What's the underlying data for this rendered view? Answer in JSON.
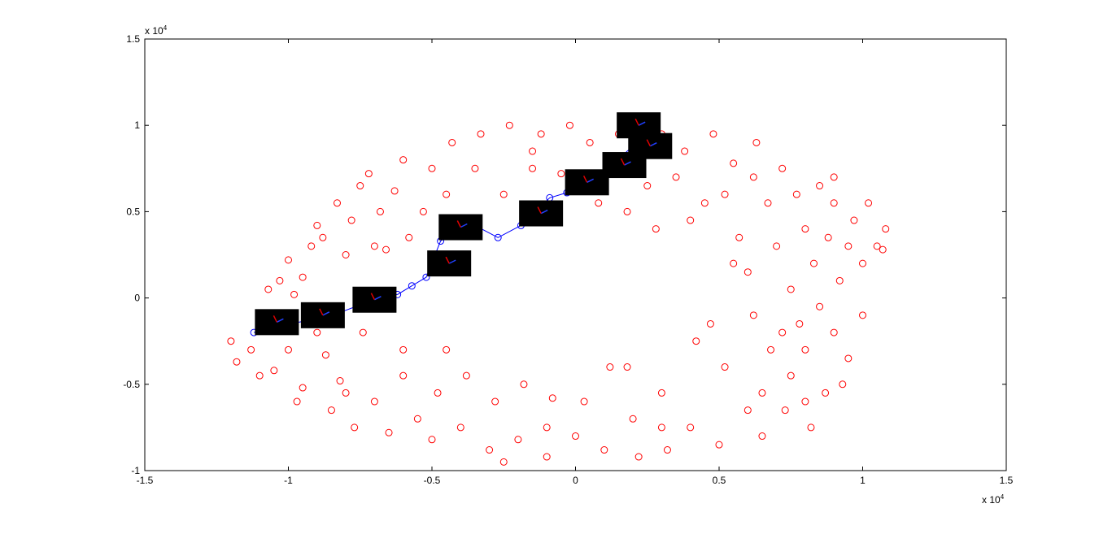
{
  "chart_data": {
    "type": "scatter",
    "xlim": [
      -1.5,
      1.5
    ],
    "ylim": [
      -1,
      1.5
    ],
    "xticks": [
      -1.5,
      -1,
      -0.5,
      0,
      0.5,
      1,
      1.5
    ],
    "yticks": [
      -1,
      -0.5,
      0,
      0.5,
      1,
      1.5
    ],
    "x_multiplier": {
      "base": "x 10",
      "exponent": "4"
    },
    "y_multiplier": {
      "base": "x 10",
      "exponent": "4"
    },
    "series": [
      {
        "color": "#ff0000",
        "marker": "circle",
        "line": false,
        "x": [
          -1.2,
          -1.18,
          -1.13,
          -1.1,
          -1.05,
          -1.07,
          -1.03,
          -1.0,
          -0.98,
          -0.97,
          -0.95,
          -0.92,
          -0.9,
          -0.88,
          -0.87,
          -0.85,
          -0.83,
          -0.82,
          -0.8,
          -0.78,
          -0.77,
          -0.75,
          -0.74,
          -0.72,
          -0.7,
          -0.68,
          -0.66,
          -0.65,
          -0.63,
          -0.6,
          -0.6,
          -0.58,
          -0.55,
          -0.53,
          -0.5,
          -0.5,
          -0.48,
          -0.45,
          -0.43,
          -0.4,
          -0.38,
          -0.35,
          -0.33,
          -0.3,
          -0.28,
          -0.25,
          -0.23,
          -0.2,
          -0.18,
          -0.15,
          -0.12,
          -0.1,
          -0.08,
          -0.05,
          -0.02,
          0,
          0.03,
          0.05,
          0.08,
          0.1,
          0.12,
          0.15,
          0.18,
          0.2,
          0.22,
          0.25,
          0.28,
          0.3,
          0.32,
          0.35,
          0.38,
          0.4,
          0.42,
          0.45,
          0.48,
          0.5,
          0.52,
          0.55,
          0.57,
          0.6,
          0.6,
          0.62,
          0.63,
          0.65,
          0.67,
          0.68,
          0.7,
          0.72,
          0.72,
          0.73,
          0.75,
          0.75,
          0.77,
          0.78,
          0.8,
          0.8,
          0.82,
          0.83,
          0.85,
          0.85,
          0.87,
          0.88,
          0.9,
          0.9,
          0.92,
          0.93,
          0.95,
          0.95,
          0.97,
          1.0,
          1.0,
          1.02,
          1.05,
          1.08,
          1.07,
          0.3,
          0.4,
          -0.25,
          -0.6,
          -0.9,
          -1.0,
          -0.95,
          0.55,
          0.47,
          0.52,
          0.62,
          0.18,
          -0.1,
          -0.35,
          -0.7,
          -0.8,
          0.8,
          0.9,
          0.65,
          -0.45,
          0.3,
          -0.15
        ],
        "y": [
          -0.25,
          -0.37,
          -0.3,
          -0.45,
          -0.42,
          0.05,
          0.1,
          0.22,
          0.02,
          -0.6,
          -0.52,
          0.3,
          0.42,
          0.35,
          -0.33,
          -0.65,
          0.55,
          -0.48,
          0.25,
          0.45,
          -0.75,
          0.65,
          -0.2,
          0.72,
          -0.6,
          0.5,
          0.28,
          -0.78,
          0.62,
          -0.45,
          0.8,
          0.35,
          -0.7,
          0.5,
          0.75,
          -0.82,
          -0.55,
          0.6,
          0.9,
          -0.75,
          -0.45,
          0.75,
          0.95,
          -0.88,
          -0.6,
          0.6,
          1.0,
          -0.82,
          -0.5,
          0.85,
          0.95,
          -0.92,
          -0.58,
          0.72,
          1.0,
          -0.8,
          -0.6,
          0.9,
          0.55,
          -0.88,
          -0.4,
          0.95,
          0.5,
          -0.7,
          -0.92,
          0.65,
          0.4,
          -0.55,
          -0.88,
          0.7,
          0.85,
          -0.75,
          -0.25,
          0.55,
          0.95,
          -0.85,
          -0.4,
          0.78,
          0.35,
          -0.65,
          0.15,
          -0.1,
          0.9,
          -0.8,
          0.55,
          -0.3,
          0.3,
          -0.2,
          0.75,
          -0.65,
          0.05,
          -0.45,
          0.6,
          -0.15,
          -0.3,
          0.4,
          -0.75,
          0.2,
          -0.05,
          0.65,
          -0.55,
          0.35,
          -0.2,
          0.55,
          0.1,
          -0.5,
          0.3,
          -0.35,
          0.45,
          -0.1,
          0.2,
          0.55,
          0.3,
          0.4,
          0.28,
          0.95,
          0.45,
          -0.95,
          -0.3,
          -0.2,
          -0.3,
          0.12,
          0.2,
          -0.15,
          0.6,
          0.7,
          -0.4,
          -0.75,
          0.45,
          0.3,
          -0.55,
          -0.6,
          0.7,
          -0.55,
          -0.3,
          -0.75,
          0.75
        ]
      },
      {
        "color": "#0000ff",
        "marker": "circle",
        "line": true,
        "x": [
          -1.12,
          -1.03,
          -0.93,
          -0.83,
          -0.75,
          -0.67,
          -0.62,
          -0.57,
          -0.52,
          -0.47,
          -0.4,
          -0.35,
          -0.27,
          -0.19,
          -0.09,
          -0.03,
          0.04,
          0.12,
          0.2,
          0.26
        ],
        "y": [
          -0.2,
          -0.16,
          -0.13,
          -0.09,
          -0.04,
          0.01,
          0.02,
          0.07,
          0.12,
          0.33,
          0.4,
          0.42,
          0.35,
          0.42,
          0.58,
          0.61,
          0.69,
          0.76,
          0.88,
          1.0
        ]
      }
    ],
    "pose_markers": {
      "color": "#000000",
      "x": [
        -1.04,
        -0.88,
        -0.7,
        -0.44,
        -0.4,
        -0.12,
        0.04,
        0.17,
        0.22,
        0.26
      ],
      "y": [
        -0.14,
        -0.1,
        -0.01,
        0.2,
        0.41,
        0.49,
        0.67,
        0.77,
        1.0,
        0.88
      ]
    }
  }
}
